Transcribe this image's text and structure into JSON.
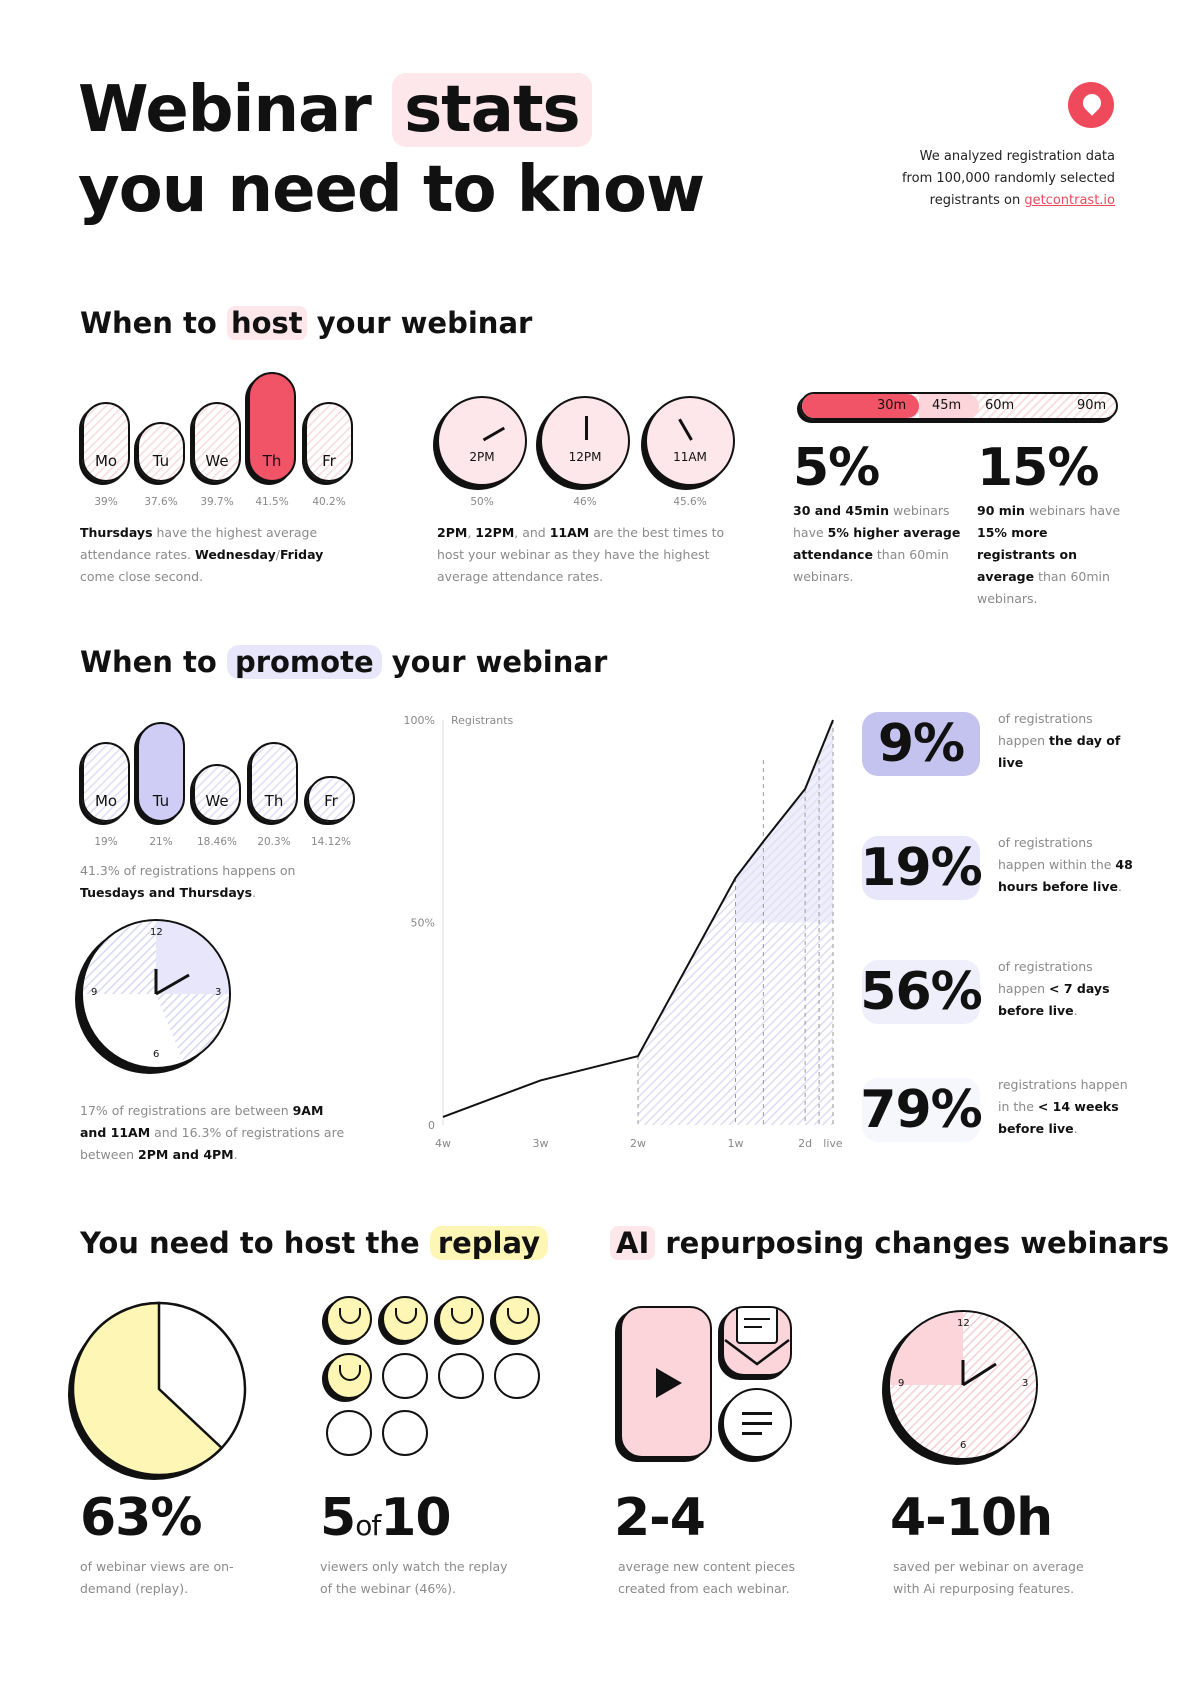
{
  "header": {
    "title_a": "Webinar",
    "title_hl": "stats",
    "title_b": "you need to know",
    "intro_1": "We analyzed registration data",
    "intro_2": "from 100,000 randomly selected",
    "intro_3": "registrants on",
    "intro_link": "getcontrast.io",
    "logo_color": "#ef4a5c"
  },
  "host": {
    "title_a": "When to",
    "title_hl": "host",
    "title_b": "your webinar",
    "days": [
      {
        "label": "Mo",
        "pct": "39%"
      },
      {
        "label": "Tu",
        "pct": "37.6%"
      },
      {
        "label": "We",
        "pct": "39.7%"
      },
      {
        "label": "Th",
        "pct": "41.5%"
      },
      {
        "label": "Fr",
        "pct": "40.2%"
      }
    ],
    "days_text": {
      "b1": "Thursdays",
      "t1": " have the highest average attendance rates. ",
      "b2": "Wednesday",
      "t2": "/",
      "b3": "Friday",
      "t3": " come close second."
    },
    "times": [
      {
        "label": "2PM",
        "pct": "50%"
      },
      {
        "label": "12PM",
        "pct": "46%"
      },
      {
        "label": "11AM",
        "pct": "45.6%"
      }
    ],
    "times_text": {
      "b1": "2PM",
      "t1": ", ",
      "b2": "12PM",
      "t2": ", and ",
      "b3": "11AM",
      "t3": " are the best times to host your webinar as they have the highest average attendance rates."
    },
    "durations": [
      "30m",
      "45m",
      "60m",
      "90m"
    ],
    "stat1": {
      "value": "5%",
      "b1": "30 and 45min",
      "t1": " webinars have ",
      "b2": "5% higher average attendance",
      "t2": " than 60min webinars."
    },
    "stat2": {
      "value": "15%",
      "b1": "90 min",
      "t1": " webinars have ",
      "b2": "15% more registrants on average",
      "t2": " than 60min webinars."
    }
  },
  "promote": {
    "title_a": "When to",
    "title_hl": "promote",
    "title_b": "your webinar",
    "days": [
      {
        "label": "Mo",
        "pct": "19%"
      },
      {
        "label": "Tu",
        "pct": "21%"
      },
      {
        "label": "We",
        "pct": "18.46%"
      },
      {
        "label": "Th",
        "pct": "20.3%"
      },
      {
        "label": "Fr",
        "pct": "14.12%"
      }
    ],
    "days_text": {
      "t1": "41.3% of registrations happens on ",
      "b1": "Tuesdays and Thursdays",
      "t2": "."
    },
    "clock_text": {
      "t1": "17% of registrations are between ",
      "b1": "9AM and 11AM",
      "t2": " and 16.3% of registrations are between ",
      "b2": "2PM and 4PM",
      "t3": "."
    },
    "clock_nums": [
      "12",
      "3",
      "6",
      "9"
    ],
    "stats": [
      {
        "value": "9%",
        "t1": "of registrations happen ",
        "b1": "the day of live",
        "t2": ""
      },
      {
        "value": "19%",
        "t1": "of registrations happen within the ",
        "b1": "48 hours before live",
        "t2": "."
      },
      {
        "value": "56%",
        "t1": "of registrations happen ",
        "b1": "< 7 days before live",
        "t2": "."
      },
      {
        "value": "79%",
        "t1": "registrations happen in the ",
        "b1": "< 14 weeks before live",
        "t2": "."
      }
    ]
  },
  "chart_data": {
    "type": "line",
    "x": [
      "4w",
      "3w",
      "2w",
      "1w",
      "2d",
      "live"
    ],
    "x_days": [
      28,
      21,
      14,
      7,
      2,
      0
    ],
    "series": [
      {
        "values": [
          [
            28,
            2
          ],
          [
            21,
            11
          ],
          [
            14,
            17
          ],
          [
            7,
            61
          ],
          [
            5,
            70
          ],
          [
            2,
            83
          ],
          [
            0,
            100
          ]
        ]
      }
    ],
    "yticks": [
      "0",
      "50%",
      "100%"
    ],
    "ylabel": "Registrants",
    "ylim": [
      0,
      100
    ],
    "bands": [
      17,
      56,
      81,
      91
    ],
    "colors": {
      "line": "#111",
      "fill": "#e4e3f8"
    }
  },
  "replay": {
    "title_a": "You need to host the",
    "title_hl": "replay",
    "s1": {
      "value": "63%",
      "text": "of webinar views are on-demand (replay).",
      "fraction": 0.63
    },
    "s2": {
      "v1": "5",
      "of": "of",
      "v2": "10",
      "text": "viewers only watch the replay of the webinar (46%).",
      "filled": 5,
      "total": 10
    }
  },
  "ai": {
    "title_hl": "AI",
    "title_b": "repurposing changes webinars",
    "s1": {
      "value": "2-4",
      "text": "average new content pieces created from each webinar."
    },
    "s2": {
      "value": "4-10h",
      "text": "saved per webinar on average with Ai repurposing features."
    },
    "clock_nums": [
      "12",
      "3",
      "6",
      "9"
    ]
  }
}
